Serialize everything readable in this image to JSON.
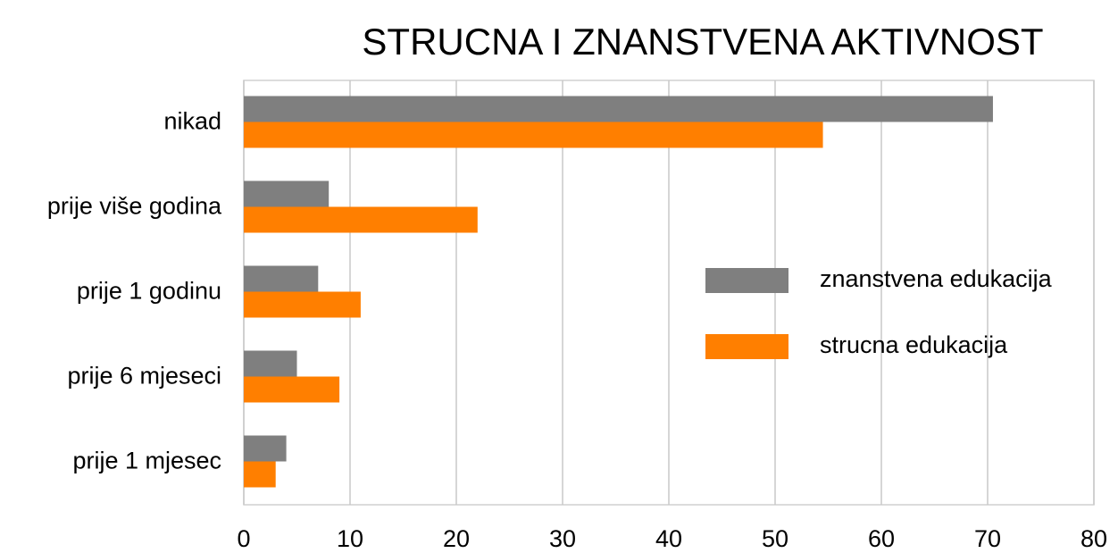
{
  "chart_data": {
    "type": "bar",
    "orientation": "horizontal",
    "title": "STRUCNA I ZNANSTVENA AKTIVNOST",
    "categories": [
      "nikad",
      "prije više godina",
      "prije 1 godinu",
      "prije 6 mjeseci",
      "prije 1 mjesec"
    ],
    "series": [
      {
        "name": "znanstvena edukacija",
        "color": "#7f7f7f",
        "values": [
          70.5,
          8,
          7,
          5,
          4
        ]
      },
      {
        "name": "strucna edukacija",
        "color": "#ff7f00",
        "values": [
          54.5,
          22,
          11,
          9,
          3
        ]
      }
    ],
    "xlim": [
      0,
      80
    ],
    "xticks": [
      0,
      10,
      20,
      30,
      40,
      50,
      60,
      70,
      80
    ],
    "grid": true,
    "legend": "right"
  }
}
